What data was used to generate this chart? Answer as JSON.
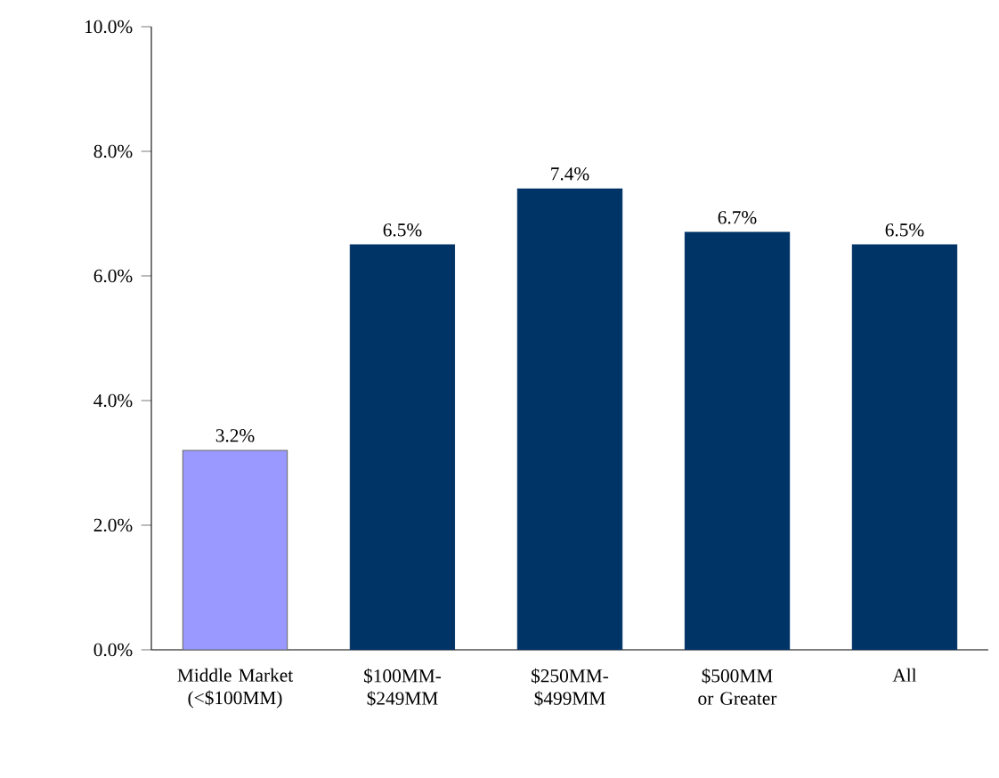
{
  "chart_data": {
    "type": "bar",
    "categories": [
      "Middle Market (<$100MM)",
      "$100MM-$249MM",
      "$250MM-$499MM",
      "$500MM or Greater",
      "All"
    ],
    "values": [
      3.2,
      6.5,
      7.4,
      6.7,
      6.5
    ],
    "colors": [
      "#9999ff",
      "#003366",
      "#003366",
      "#003366",
      "#003366"
    ],
    "value_labels": [
      "3.2%",
      "6.5%",
      "7.4%",
      "6.7%",
      "6.5%"
    ],
    "ylim": [
      0,
      10
    ],
    "yticks": [
      {
        "value": 0,
        "label": "0.0%"
      },
      {
        "value": 2,
        "label": "2.0%"
      },
      {
        "value": 4,
        "label": "4.0%"
      },
      {
        "value": 6,
        "label": "6.0%"
      },
      {
        "value": 8,
        "label": "8.0%"
      },
      {
        "value": 10,
        "label": "10.0%"
      }
    ],
    "grid": false
  }
}
